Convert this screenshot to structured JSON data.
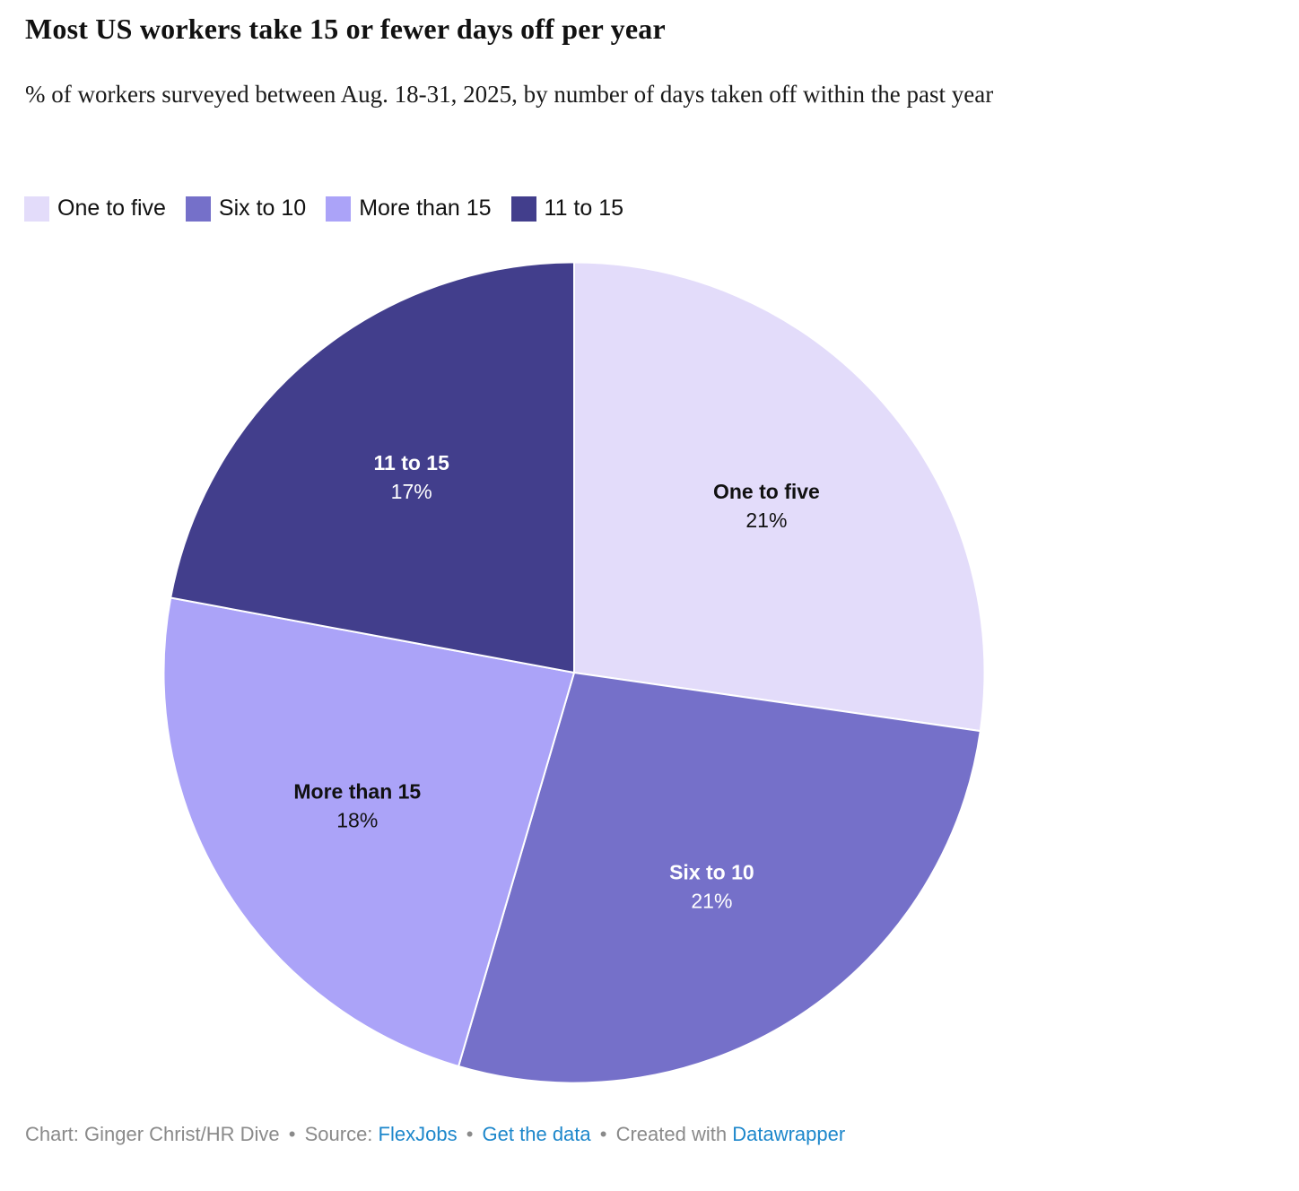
{
  "header": {
    "title": "Most US workers take 15 or fewer days off per year",
    "subtitle": "% of workers surveyed between Aug. 18-31, 2025, by number of days taken off within the past year"
  },
  "chart_data": {
    "type": "pie",
    "title": "Most US workers take 15 or fewer days off per year",
    "unit": "%",
    "start_angle_deg": 0,
    "direction": "clockwise",
    "legend_position": "top",
    "slices": [
      {
        "label": "One to five",
        "value": 21,
        "display": "21%",
        "color": "#E3DCFA",
        "label_color": "#111111"
      },
      {
        "label": "Six to 10",
        "value": 21,
        "display": "21%",
        "color": "#7570C9",
        "label_color": "#FFFFFF"
      },
      {
        "label": "More than 15",
        "value": 18,
        "display": "18%",
        "color": "#ABA3F8",
        "label_color": "#111111"
      },
      {
        "label": "11 to 15",
        "value": 17,
        "display": "17%",
        "color": "#423E8C",
        "label_color": "#FFFFFF"
      }
    ]
  },
  "footer": {
    "credit": "Chart: Ginger Christ/HR Dive",
    "separator": "•",
    "source_label": "Source:",
    "source_link": "FlexJobs",
    "get_data_link": "Get the data",
    "created_with": "Created with",
    "tool_link": "Datawrapper",
    "link_color": "#1D87CB",
    "text_color": "#8A8A8A"
  }
}
